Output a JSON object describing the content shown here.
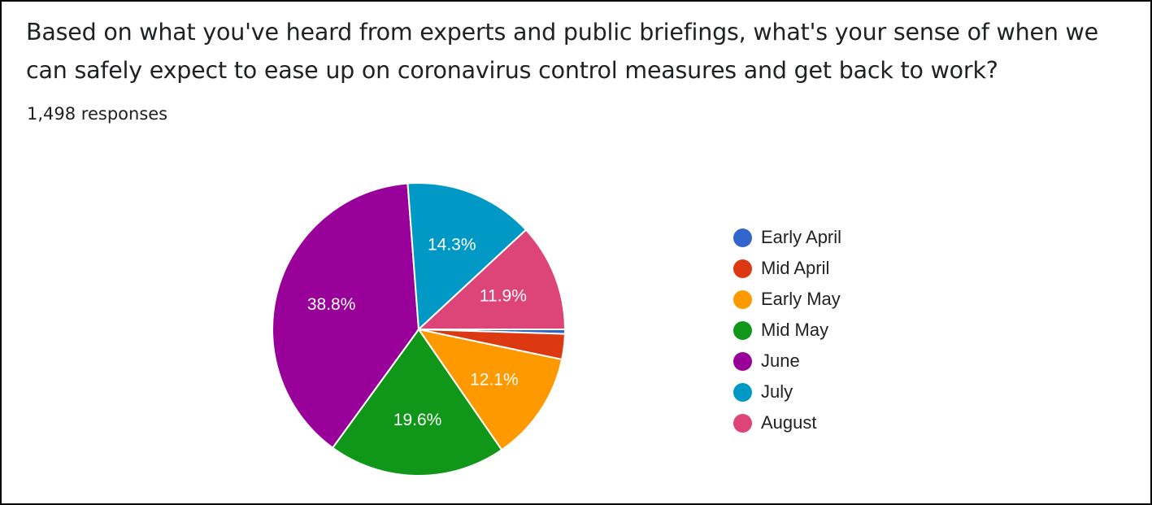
{
  "header": {
    "title": "Based on what you've heard from experts and public briefings, what's your sense of when we can safely expect to ease up on coronavirus control measures and get back to work?",
    "responses": "1,498 responses"
  },
  "chart_data": {
    "type": "pie",
    "categories": [
      "Early April",
      "Mid April",
      "Early May",
      "Mid May",
      "June",
      "July",
      "August"
    ],
    "values": [
      0.5,
      2.8,
      12.1,
      19.6,
      38.8,
      14.3,
      11.9
    ],
    "labels": [
      "",
      "",
      "12.1%",
      "19.6%",
      "38.8%",
      "14.3%",
      "11.9%"
    ],
    "colors": [
      "#3366cc",
      "#dc3912",
      "#ff9900",
      "#109618",
      "#990099",
      "#0099c6",
      "#dd4477"
    ],
    "start": "3 o'clock",
    "direction": "clockwise",
    "legend_position": "right"
  }
}
